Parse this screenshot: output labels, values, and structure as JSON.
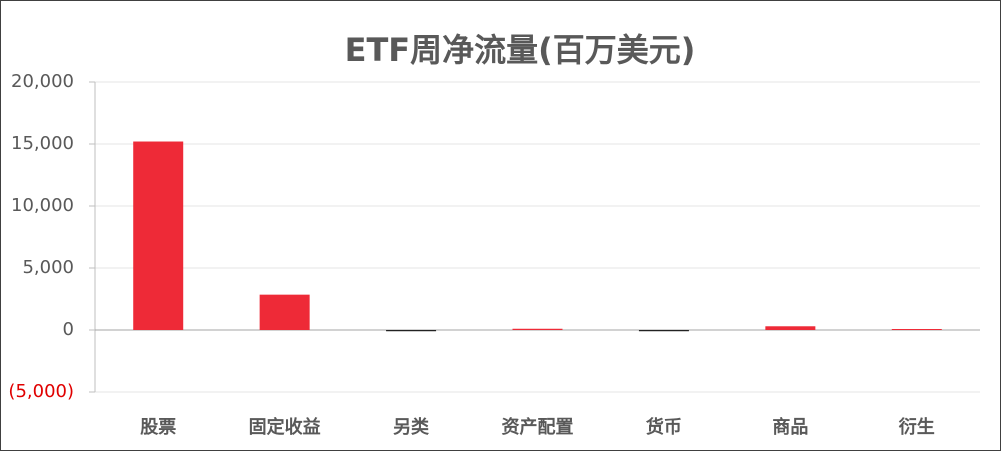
{
  "chart_data": {
    "type": "bar",
    "title": "ETF周净流量(百万美元)",
    "categories": [
      "股票",
      "固定收益",
      "另类",
      "资产配置",
      "货币",
      "商品",
      "衍生"
    ],
    "values": [
      15200,
      2850,
      -100,
      100,
      -100,
      300,
      80
    ],
    "colors": [
      "#ee2a37",
      "#ee2a37",
      "#222222",
      "#ee2a37",
      "#222222",
      "#ee2a37",
      "#ee2a37"
    ],
    "ylim": [
      -5000,
      20000
    ],
    "yticks": [
      {
        "value": -5000,
        "label": "(5,000)"
      },
      0,
      {
        "value": 5000,
        "label": "5,000"
      },
      {
        "value": 10000,
        "label": "10,000"
      },
      {
        "value": 15000,
        "label": "15,000"
      },
      {
        "value": 20000,
        "label": "20,000"
      }
    ],
    "negative_tick_color": "#e00000",
    "grid": true
  }
}
